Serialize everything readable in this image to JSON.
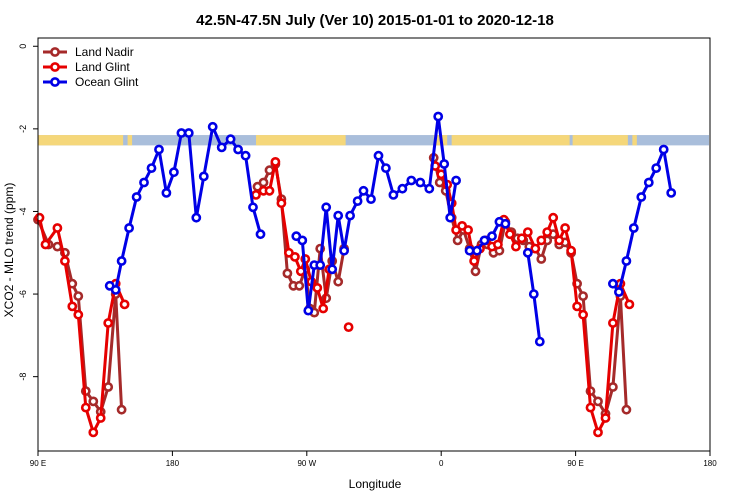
{
  "chart_data": {
    "type": "line",
    "title": "42.5N-47.5N July (Ver 10)   2015-01-01 to 2020-12-18",
    "xlabel": "Longitude",
    "ylabel": "XCO2 - MLO trend (ppm)",
    "x_ticks": [
      {
        "value": 90,
        "label": "90 E"
      },
      {
        "value": 180,
        "label": "180"
      },
      {
        "value": 270,
        "label": "90 W"
      },
      {
        "value": 360,
        "label": "0"
      },
      {
        "value": 450,
        "label": "90 E"
      },
      {
        "value": 540,
        "label": "180"
      }
    ],
    "y_ticks": [
      {
        "value": 0,
        "label": "0"
      },
      {
        "value": -2,
        "label": "-2"
      },
      {
        "value": -4,
        "label": "-4"
      },
      {
        "value": -6,
        "label": "-6"
      },
      {
        "value": -8,
        "label": "-8"
      }
    ],
    "xlim": [
      90,
      540
    ],
    "ylim": [
      -9.8,
      0.2
    ],
    "legend_position": "top-left",
    "land_mask_band": {
      "y_range": [
        -2.4,
        -2.15
      ],
      "land_color": "#f5d77a",
      "ocean_color": "#a9bedb"
    },
    "series": [
      {
        "name": "Land Nadir",
        "color": "#a52a2a",
        "segments": [
          [
            [
              90,
              -4.2
            ],
            [
              97,
              -4.8
            ],
            [
              103,
              -4.85
            ],
            [
              108,
              -5.0
            ],
            [
              113,
              -5.75
            ],
            [
              117,
              -6.05
            ],
            [
              122,
              -8.35
            ],
            [
              127,
              -8.6
            ],
            [
              132,
              -8.85
            ],
            [
              137,
              -8.25
            ],
            [
              142,
              -6.0
            ],
            [
              146,
              -8.8
            ]
          ],
          [
            [
              237,
              -3.4
            ],
            [
              241,
              -3.3
            ],
            [
              245,
              -3.0
            ],
            [
              249,
              -2.85
            ],
            [
              253,
              -3.7
            ],
            [
              257,
              -5.5
            ],
            [
              261,
              -5.8
            ],
            [
              265,
              -5.8
            ],
            [
              269,
              -5.4
            ],
            [
              272,
              -6.35
            ],
            [
              275,
              -6.45
            ],
            [
              279,
              -4.9
            ],
            [
              283,
              -6.1
            ],
            [
              287,
              -5.2
            ],
            [
              291,
              -5.7
            ],
            [
              295,
              -4.9
            ]
          ],
          [
            [
              355,
              -2.7
            ],
            [
              359,
              -3.3
            ],
            [
              363,
              -3.5
            ],
            [
              367,
              -4.15
            ],
            [
              371,
              -4.7
            ],
            [
              375,
              -4.45
            ],
            [
              379,
              -4.9
            ],
            [
              383,
              -5.45
            ],
            [
              387,
              -4.8
            ],
            [
              391,
              -4.8
            ],
            [
              395,
              -5.0
            ],
            [
              399,
              -4.95
            ],
            [
              403,
              -4.25
            ],
            [
              407,
              -4.5
            ],
            [
              411,
              -4.65
            ],
            [
              415,
              -4.7
            ],
            [
              419,
              -4.85
            ],
            [
              423,
              -4.9
            ],
            [
              427,
              -5.15
            ],
            [
              431,
              -4.7
            ],
            [
              435,
              -4.55
            ],
            [
              439,
              -4.8
            ],
            [
              443,
              -4.75
            ],
            [
              447,
              -5.0
            ],
            [
              451,
              -5.75
            ],
            [
              455,
              -6.05
            ],
            [
              460,
              -8.35
            ],
            [
              465,
              -8.6
            ],
            [
              470,
              -8.9
            ],
            [
              475,
              -8.25
            ],
            [
              480,
              -6.05
            ],
            [
              484,
              -8.8
            ]
          ]
        ]
      },
      {
        "name": "Land Glint",
        "color": "#e60000",
        "segments": [
          [
            [
              91,
              -4.15
            ],
            [
              95,
              -4.8
            ],
            [
              103,
              -4.4
            ],
            [
              108,
              -5.2
            ],
            [
              113,
              -6.3
            ],
            [
              117,
              -6.5
            ],
            [
              122,
              -8.75
            ],
            [
              127,
              -9.35
            ],
            [
              132,
              -9.0
            ],
            [
              137,
              -6.7
            ],
            [
              142,
              -5.75
            ],
            [
              148,
              -6.25
            ]
          ],
          [
            [
              236,
              -3.6
            ],
            [
              241,
              -3.5
            ],
            [
              245,
              -3.5
            ],
            [
              249,
              -2.8
            ],
            [
              253,
              -3.8
            ],
            [
              258,
              -5.0
            ],
            [
              262,
              -5.1
            ],
            [
              266,
              -5.45
            ],
            [
              269,
              -5.15
            ],
            [
              273,
              -5.7
            ],
            [
              277,
              -5.85
            ],
            [
              281,
              -6.35
            ],
            [
              285,
              -5.4
            ]
          ],
          [
            [
              298,
              -6.8
            ]
          ],
          [
            [
              356,
              -2.9
            ],
            [
              360,
              -3.1
            ],
            [
              364,
              -3.35
            ],
            [
              367,
              -3.8
            ],
            [
              370,
              -4.45
            ],
            [
              374,
              -4.35
            ],
            [
              378,
              -4.45
            ],
            [
              382,
              -5.2
            ],
            [
              386,
              -4.9
            ],
            [
              390,
              -4.7
            ],
            [
              394,
              -4.85
            ],
            [
              398,
              -4.8
            ],
            [
              402,
              -4.2
            ],
            [
              406,
              -4.55
            ],
            [
              410,
              -4.85
            ],
            [
              414,
              -4.65
            ],
            [
              418,
              -4.5
            ],
            [
              423,
              -4.9
            ],
            [
              427,
              -4.7
            ],
            [
              431,
              -4.5
            ],
            [
              435,
              -4.15
            ],
            [
              439,
              -4.7
            ],
            [
              443,
              -4.4
            ],
            [
              447,
              -4.95
            ],
            [
              451,
              -6.3
            ],
            [
              455,
              -6.5
            ],
            [
              460,
              -8.75
            ],
            [
              465,
              -9.35
            ],
            [
              470,
              -9.0
            ],
            [
              475,
              -6.7
            ],
            [
              480,
              -5.75
            ],
            [
              486,
              -6.25
            ]
          ]
        ]
      },
      {
        "name": "Ocean Glint",
        "color": "#0000e6",
        "segments": [
          [
            [
              138,
              -5.8
            ],
            [
              142,
              -5.9
            ],
            [
              146,
              -5.2
            ],
            [
              151,
              -4.4
            ],
            [
              156,
              -3.65
            ],
            [
              161,
              -3.3
            ],
            [
              166,
              -2.95
            ],
            [
              171,
              -2.5
            ],
            [
              176,
              -3.55
            ],
            [
              181,
              -3.05
            ],
            [
              186,
              -2.1
            ],
            [
              191,
              -2.1
            ],
            [
              196,
              -4.15
            ],
            [
              201,
              -3.15
            ],
            [
              207,
              -1.95
            ],
            [
              213,
              -2.45
            ],
            [
              219,
              -2.25
            ],
            [
              224,
              -2.5
            ],
            [
              229,
              -2.65
            ],
            [
              234,
              -3.9
            ],
            [
              239,
              -4.55
            ]
          ],
          [
            [
              263,
              -4.6
            ],
            [
              267,
              -4.7
            ],
            [
              271,
              -6.4
            ],
            [
              275,
              -5.3
            ],
            [
              279,
              -5.3
            ],
            [
              283,
              -3.9
            ],
            [
              287,
              -5.4
            ],
            [
              291,
              -4.1
            ],
            [
              295,
              -4.95
            ],
            [
              299,
              -4.1
            ],
            [
              304,
              -3.75
            ],
            [
              308,
              -3.5
            ],
            [
              313,
              -3.7
            ],
            [
              318,
              -2.65
            ],
            [
              323,
              -2.95
            ],
            [
              328,
              -3.6
            ],
            [
              334,
              -3.45
            ],
            [
              340,
              -3.25
            ],
            [
              346,
              -3.3
            ],
            [
              352,
              -3.45
            ],
            [
              358,
              -1.7
            ],
            [
              362,
              -2.85
            ],
            [
              366,
              -4.15
            ],
            [
              370,
              -3.25
            ]
          ],
          [
            [
              379,
              -4.95
            ],
            [
              384,
              -4.95
            ],
            [
              389,
              -4.7
            ],
            [
              394,
              -4.6
            ],
            [
              399,
              -4.25
            ],
            [
              403,
              -4.3
            ]
          ],
          [
            [
              418,
              -5.0
            ],
            [
              422,
              -6.0
            ],
            [
              426,
              -7.15
            ]
          ],
          [
            [
              475,
              -5.75
            ],
            [
              479,
              -5.95
            ],
            [
              484,
              -5.2
            ],
            [
              489,
              -4.4
            ],
            [
              494,
              -3.65
            ],
            [
              499,
              -3.3
            ],
            [
              504,
              -2.95
            ],
            [
              509,
              -2.5
            ],
            [
              514,
              -3.55
            ]
          ]
        ]
      }
    ]
  }
}
